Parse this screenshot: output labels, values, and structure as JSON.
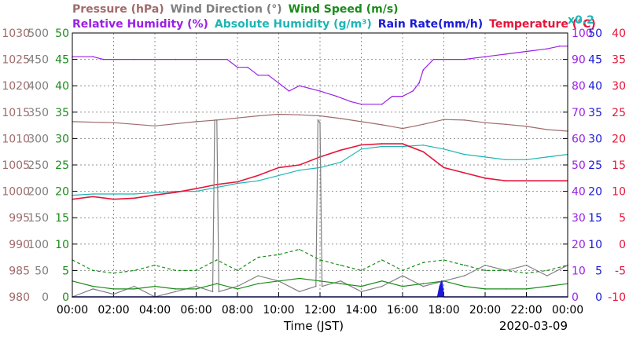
{
  "colors": {
    "pressure": "#a06b6b",
    "wind_direction": "#808080",
    "wind_speed": "#1a8c1a",
    "relative_humidity": "#9b1fe6",
    "absolute_humidity": "#1fb5b5",
    "rain_rate": "#1a1ad6",
    "temperature": "#e6153a",
    "grid": "#909090",
    "axis": "#000000"
  },
  "legend": {
    "row1": [
      {
        "key": "pressure",
        "label": "Pressure (hPa)"
      },
      {
        "key": "wind_direction",
        "label": "Wind Direction (°)"
      },
      {
        "key": "wind_speed",
        "label": "Wind Speed (m/s)"
      }
    ],
    "row2": [
      {
        "key": "relative_humidity",
        "label": "Relative Humidity (%)"
      },
      {
        "key": "absolute_humidity",
        "label": "Absolute Humidity (g/m³)"
      },
      {
        "key": "rain_rate",
        "label": "Rain Rate(mm/h)"
      },
      {
        "key": "temperature",
        "label": "Temperature (°C)"
      }
    ],
    "multiplier": "x0.2"
  },
  "chart_data": {
    "type": "line",
    "xlabel": "Time (JST)",
    "date": "2020-03-09",
    "x_ticks": [
      "00:00",
      "02:00",
      "04:00",
      "06:00",
      "08:00",
      "10:00",
      "12:00",
      "14:00",
      "16:00",
      "18:00",
      "20:00",
      "22:00",
      "00:00"
    ],
    "xlim_hours": [
      0,
      24
    ],
    "grid": true,
    "axes": {
      "pressure": {
        "ticks": [
          "980",
          "985",
          "990",
          "995",
          "1000",
          "1005",
          "1010",
          "1015",
          "1020",
          "1025",
          "1030"
        ],
        "range": [
          980,
          1030
        ]
      },
      "wind_direction": {
        "ticks": [
          "0",
          "50",
          "100",
          "150",
          "200",
          "250",
          "300",
          "350",
          "400",
          "450",
          "500"
        ],
        "range": [
          0,
          500
        ]
      },
      "wind_speed": {
        "ticks": [
          "0",
          "5",
          "10",
          "15",
          "20",
          "25",
          "30",
          "35",
          "40",
          "45",
          "50"
        ],
        "range": [
          0,
          50
        ]
      },
      "relative_humidity": {
        "ticks": [
          "0",
          "10",
          "20",
          "30",
          "40",
          "50",
          "60",
          "70",
          "80",
          "90",
          "100"
        ],
        "range": [
          0,
          100
        ]
      },
      "rain_rate": {
        "ticks": [
          "0",
          "5",
          "10",
          "15",
          "20",
          "25",
          "30",
          "35",
          "40",
          "45",
          "50"
        ],
        "range": [
          0,
          50
        ]
      },
      "temperature": {
        "ticks": [
          "-10",
          "-5",
          "0",
          "5",
          "10",
          "15",
          "20",
          "25",
          "30",
          "35",
          "40"
        ],
        "range": [
          -10,
          40
        ]
      }
    },
    "series": [
      {
        "name": "Pressure (hPa)",
        "key": "pressure",
        "axis": "pressure",
        "x": [
          0,
          2,
          4,
          6,
          7,
          8,
          9,
          10,
          11,
          12,
          13,
          14,
          15,
          16,
          17,
          18,
          19,
          20,
          21,
          22,
          23,
          24
        ],
        "y": [
          1013.2,
          1013.0,
          1012.4,
          1013.2,
          1013.5,
          1013.9,
          1014.3,
          1014.6,
          1014.5,
          1014.3,
          1013.8,
          1013.2,
          1012.6,
          1011.9,
          1012.7,
          1013.6,
          1013.5,
          1013.0,
          1012.7,
          1012.3,
          1011.7,
          1011.4
        ]
      },
      {
        "name": "Relative Humidity (%)",
        "key": "relative_humidity",
        "axis": "relative_humidity",
        "x": [
          0,
          1,
          1.5,
          3,
          5,
          7.5,
          8,
          8.5,
          9,
          9.5,
          10,
          10.5,
          11,
          12,
          12.8,
          13.5,
          14,
          15,
          15.5,
          16,
          16.5,
          16.8,
          17,
          17.5,
          18,
          19,
          20,
          21,
          22,
          23,
          23.6,
          24
        ],
        "y": [
          91,
          91,
          90,
          90,
          90,
          90,
          87,
          87,
          84,
          84,
          81,
          78,
          80,
          78,
          76,
          74,
          73,
          73,
          76,
          76,
          78,
          81,
          86,
          90,
          90,
          90,
          91,
          92,
          93,
          94,
          95,
          95
        ]
      },
      {
        "name": "Absolute Humidity (g/m³) x0.2",
        "key": "absolute_humidity",
        "axis": "relative_humidity",
        "x": [
          0,
          1,
          2,
          3,
          4,
          5,
          6,
          7,
          8,
          9,
          10,
          11,
          12,
          13,
          14,
          15,
          16,
          17,
          18,
          19,
          20,
          21,
          22,
          23,
          24
        ],
        "y": [
          38.5,
          39,
          39,
          39,
          39.5,
          40,
          40,
          41.5,
          43,
          44,
          46,
          48,
          49,
          51,
          56,
          57,
          57,
          57.5,
          56,
          54,
          53,
          52,
          52,
          53,
          54
        ]
      },
      {
        "name": "Temperature (°C)",
        "key": "temperature",
        "axis": "temperature",
        "x": [
          0,
          1,
          2,
          3,
          4,
          5,
          6,
          7,
          8,
          9,
          10,
          11,
          12,
          13,
          14,
          15,
          16,
          17,
          18,
          19,
          20,
          21,
          22,
          23,
          24
        ],
        "y": [
          8.5,
          9,
          8.5,
          8.7,
          9.3,
          9.8,
          10.5,
          11.3,
          11.8,
          13,
          14.5,
          15,
          16.5,
          17.8,
          18.8,
          19,
          19,
          17.5,
          14.5,
          13.5,
          12.5,
          12,
          12,
          12,
          12
        ]
      },
      {
        "name": "Wind Direction (°)",
        "key": "wind_direction",
        "axis": "wind_direction",
        "x": [
          0,
          1,
          2,
          3,
          4,
          5,
          6,
          6.8,
          6.9,
          7,
          7.1,
          8,
          9,
          10,
          11,
          11.8,
          11.9,
          12,
          12.1,
          13,
          14,
          15,
          16,
          17,
          18,
          19,
          20,
          21,
          22,
          23,
          24
        ],
        "y": [
          0,
          15,
          5,
          20,
          0,
          10,
          20,
          10,
          335,
          335,
          10,
          20,
          40,
          30,
          10,
          20,
          335,
          330,
          20,
          30,
          10,
          20,
          40,
          20,
          30,
          40,
          60,
          50,
          60,
          40,
          60
        ]
      },
      {
        "name": "Wind Speed (m/s) avg",
        "key": "wind_speed",
        "axis": "wind_speed",
        "x": [
          0,
          1,
          2,
          3,
          4,
          5,
          6,
          7,
          8,
          9,
          10,
          11,
          12,
          13,
          14,
          15,
          16,
          17,
          18,
          19,
          20,
          21,
          22,
          23,
          24
        ],
        "y": [
          3,
          2,
          1.5,
          1.5,
          2,
          1.5,
          1.5,
          2.5,
          1.5,
          2.5,
          3,
          3.5,
          3,
          2.5,
          2,
          3,
          2,
          2.5,
          3,
          2,
          1.5,
          1.5,
          1.5,
          2,
          2.5
        ]
      },
      {
        "name": "Wind Speed (m/s) max",
        "key": "wind_speed",
        "axis": "wind_speed",
        "dashed": true,
        "x": [
          0,
          1,
          2,
          3,
          4,
          5,
          6,
          7,
          8,
          9,
          10,
          11,
          12,
          13,
          14,
          15,
          16,
          17,
          18,
          19,
          20,
          21,
          22,
          23,
          24
        ],
        "y": [
          7,
          5,
          4.5,
          5,
          6,
          5,
          5,
          7,
          5,
          7.5,
          8,
          9,
          7,
          6,
          5,
          7,
          5,
          6.5,
          7,
          6,
          5,
          5,
          4.5,
          5,
          6
        ]
      },
      {
        "name": "Rain Rate(mm/h)",
        "key": "rain_rate",
        "axis": "rain_rate",
        "x": [
          0,
          17.7,
          17.8,
          17.9,
          18.0,
          24
        ],
        "y": [
          0,
          0,
          2,
          3,
          0,
          0
        ]
      }
    ]
  }
}
